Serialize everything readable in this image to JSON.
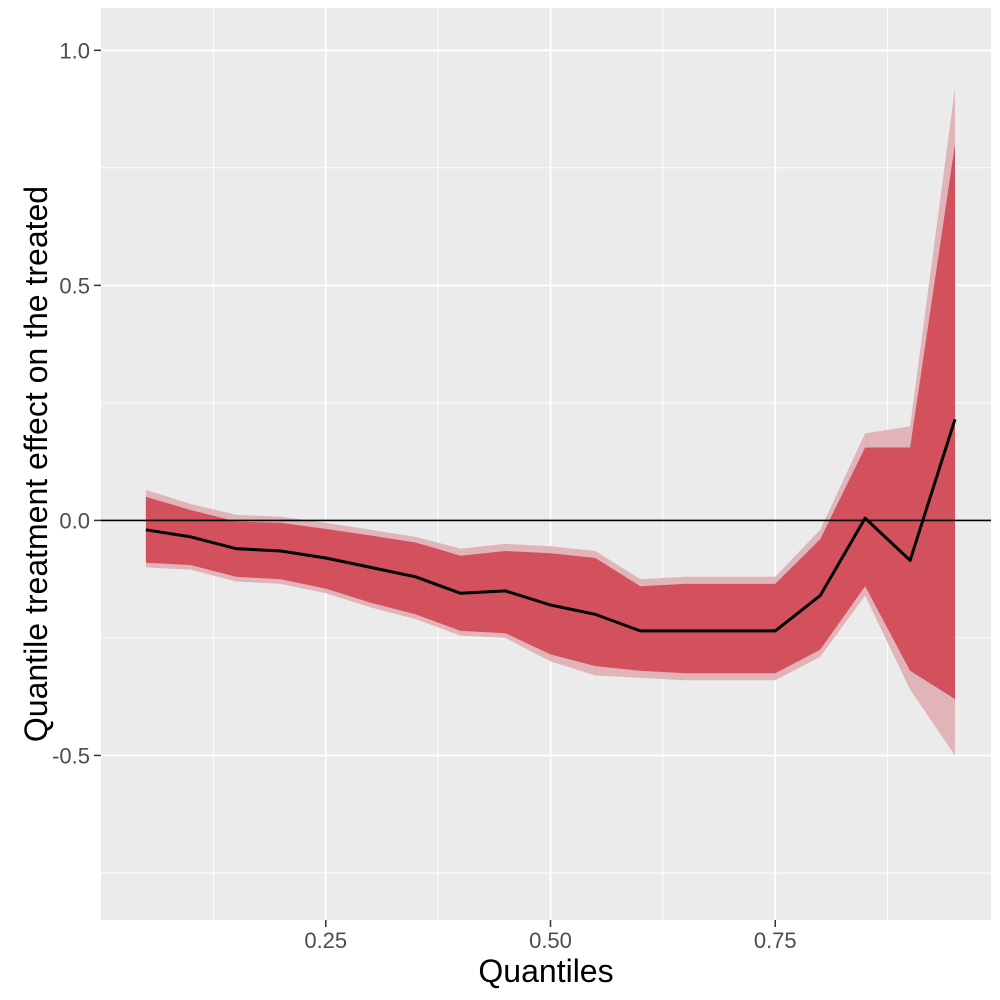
{
  "chart_data": {
    "type": "area",
    "xlabel": "Quantiles",
    "ylabel": "Quantile treatment effect on the treated",
    "xlim": [
      0.0,
      0.99
    ],
    "ylim": [
      -0.85,
      1.09
    ],
    "x_ticks": [
      0.25,
      0.5,
      0.75
    ],
    "x_tick_labels": [
      "0.25",
      "0.50",
      "0.75"
    ],
    "y_ticks": [
      1.0,
      0.5,
      0.0,
      -0.5
    ],
    "y_tick_labels": [
      "1.0",
      "0.5",
      "0.0",
      "-0.5"
    ],
    "grid": true,
    "reference_line_y": 0.0,
    "x": [
      0.05,
      0.1,
      0.15,
      0.2,
      0.25,
      0.3,
      0.35,
      0.4,
      0.45,
      0.5,
      0.55,
      0.6,
      0.65,
      0.7,
      0.75,
      0.8,
      0.85,
      0.9,
      0.95
    ],
    "series": [
      {
        "role": "outer_band",
        "color": "#e0b4b9",
        "upper": [
          0.065,
          0.035,
          0.012,
          0.008,
          -0.005,
          -0.02,
          -0.035,
          -0.06,
          -0.05,
          -0.055,
          -0.065,
          -0.125,
          -0.12,
          -0.12,
          -0.12,
          -0.02,
          0.185,
          0.2,
          0.92
        ],
        "lower": [
          -0.1,
          -0.105,
          -0.13,
          -0.135,
          -0.155,
          -0.185,
          -0.21,
          -0.245,
          -0.25,
          -0.3,
          -0.33,
          -0.335,
          -0.34,
          -0.34,
          -0.34,
          -0.29,
          -0.16,
          -0.36,
          -0.5
        ]
      },
      {
        "role": "inner_band",
        "color": "#d2515d",
        "upper": [
          0.05,
          0.022,
          -0.002,
          -0.005,
          -0.018,
          -0.032,
          -0.047,
          -0.075,
          -0.065,
          -0.07,
          -0.08,
          -0.14,
          -0.135,
          -0.135,
          -0.135,
          -0.04,
          0.155,
          0.155,
          0.8
        ],
        "lower": [
          -0.09,
          -0.095,
          -0.12,
          -0.125,
          -0.145,
          -0.175,
          -0.2,
          -0.235,
          -0.24,
          -0.285,
          -0.31,
          -0.32,
          -0.325,
          -0.325,
          -0.325,
          -0.275,
          -0.14,
          -0.32,
          -0.38
        ]
      },
      {
        "role": "estimate",
        "color": "#000000",
        "values": [
          -0.02,
          -0.035,
          -0.06,
          -0.065,
          -0.08,
          -0.1,
          -0.12,
          -0.155,
          -0.15,
          -0.18,
          -0.2,
          -0.235,
          -0.235,
          -0.235,
          -0.235,
          -0.16,
          0.005,
          -0.085,
          0.215
        ]
      }
    ]
  }
}
